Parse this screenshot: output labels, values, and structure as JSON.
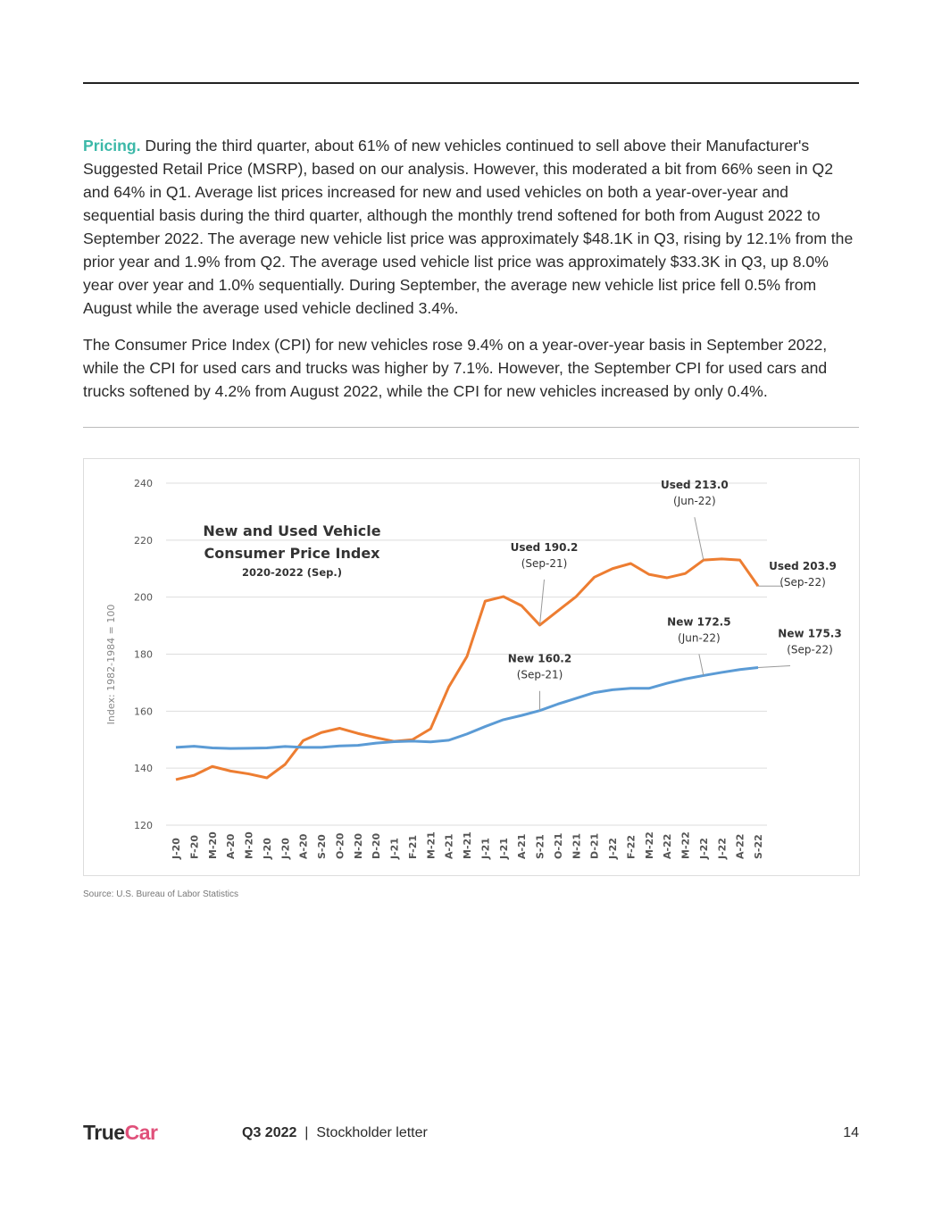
{
  "body": {
    "p1_lead": "Pricing.",
    "p1": " During the third quarter, about 61% of new vehicles continued to sell above their Manufacturer's Suggested Retail Price (MSRP), based on our analysis. However, this moderated a bit from 66% seen in Q2 and 64% in Q1. Average list prices increased for new and used vehicles on both a year-over-year and sequential basis during the third quarter, although the monthly trend softened for both from August 2022 to September 2022. The average new vehicle list price was approximately $48.1K in Q3, rising by 12.1% from the prior year and 1.9% from Q2. The average used vehicle list price was approximately $33.3K in Q3, up 8.0% year over year and 1.0% sequentially. During September, the average new vehicle list price fell 0.5% from August while the average used vehicle declined 3.4%.",
    "p2": "The Consumer Price Index (CPI) for new vehicles rose 9.4% on a year-over-year basis in September 2022, while the CPI for used cars and trucks was higher by 7.1%. However, the September CPI for used cars and trucks softened by 4.2% from August 2022, while the CPI for new vehicles increased by only 0.4%."
  },
  "chart_data": {
    "type": "line",
    "title": "New and Used Vehicle Consumer Price Index",
    "subtitle": "2020-2022 (Sep.)",
    "ylabel": "Index: 1982-1984 = 100",
    "ylim": [
      120,
      240
    ],
    "yticks": [
      120,
      140,
      160,
      180,
      200,
      220,
      240
    ],
    "categories": [
      "J-20",
      "F-20",
      "M-20",
      "A-20",
      "M-20",
      "J-20",
      "J-20",
      "A-20",
      "S-20",
      "O-20",
      "N-20",
      "D-20",
      "J-21",
      "F-21",
      "M-21",
      "A-21",
      "M-21",
      "J-21",
      "J-21",
      "A-21",
      "S-21",
      "O-21",
      "N-21",
      "D-21",
      "J-22",
      "F-22",
      "M-22",
      "A-22",
      "M-22",
      "J-22",
      "J-22",
      "A-22",
      "S-22"
    ],
    "series": [
      {
        "name": "Used",
        "color": "#ed7d31",
        "values": [
          136.0,
          137.5,
          140.6,
          139.0,
          138.0,
          136.6,
          141.3,
          149.7,
          152.5,
          154.0,
          152.2,
          150.7,
          149.4,
          150.0,
          153.8,
          168.5,
          179.2,
          198.6,
          200.2,
          197.0,
          190.2,
          195.2,
          200.2,
          207.0,
          210.0,
          211.8,
          208.0,
          206.8,
          208.3,
          213.0,
          213.4,
          213.0,
          203.9
        ]
      },
      {
        "name": "New",
        "color": "#5b9bd5",
        "values": [
          147.3,
          147.7,
          147.1,
          146.9,
          147.0,
          147.1,
          147.6,
          147.3,
          147.3,
          147.8,
          148.0,
          148.8,
          149.3,
          149.5,
          149.2,
          149.8,
          152.0,
          154.6,
          157.0,
          158.5,
          160.2,
          162.5,
          164.5,
          166.5,
          167.5,
          168.0,
          168.0,
          169.8,
          171.3,
          172.5,
          173.6,
          174.6,
          175.3
        ]
      }
    ],
    "annotations": [
      {
        "label": "Used 190.2",
        "sub": "(Sep-21)",
        "series": 0,
        "index": 20
      },
      {
        "label": "Used 213.0",
        "sub": "(Jun-22)",
        "series": 0,
        "index": 29
      },
      {
        "label": "Used 203.9",
        "sub": "(Sep-22)",
        "series": 0,
        "index": 32
      },
      {
        "label": "New 160.2",
        "sub": "(Sep-21)",
        "series": 1,
        "index": 20
      },
      {
        "label": "New 172.5",
        "sub": "(Jun-22)",
        "series": 1,
        "index": 29
      },
      {
        "label": "New 175.3",
        "sub": "(Sep-22)",
        "series": 1,
        "index": 32
      }
    ],
    "grid": true
  },
  "source": "Source: U.S. Bureau of Labor Statistics",
  "footer": {
    "logo_true": "True",
    "logo_car": "Car",
    "quarter": "Q3 2022",
    "separator": "|",
    "doc": "Stockholder letter",
    "page": "14"
  }
}
